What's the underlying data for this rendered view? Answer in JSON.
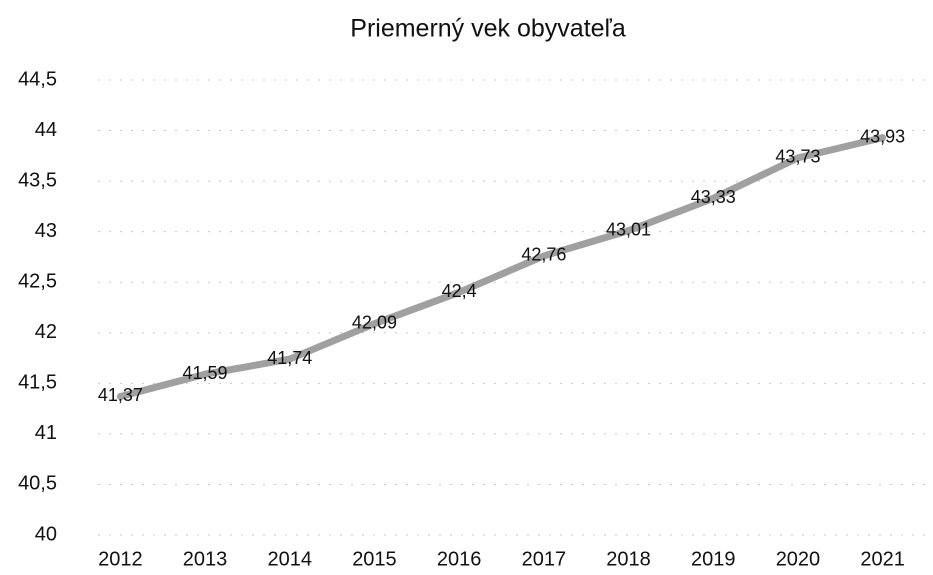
{
  "chart_data": {
    "type": "line",
    "title": "Priemerný vek obyvateľa",
    "categories": [
      "2012",
      "2013",
      "2014",
      "2015",
      "2016",
      "2017",
      "2018",
      "2019",
      "2020",
      "2021"
    ],
    "values": [
      41.37,
      41.59,
      41.74,
      42.09,
      42.4,
      42.76,
      43.01,
      43.33,
      43.73,
      43.93
    ],
    "value_labels": [
      "41,37",
      "41,59",
      "41,74",
      "42,09",
      "42,4",
      "42,76",
      "43,01",
      "43,33",
      "43,73",
      "43,93"
    ],
    "color": "#a0a0a0",
    "ylim": [
      40,
      44.5
    ],
    "yticks": [
      40,
      {
        "value": 40.5,
        "label": "40,5"
      },
      41,
      {
        "value": 41.5,
        "label": "41,5"
      },
      42,
      {
        "value": 42.5,
        "label": "42,5"
      },
      43,
      {
        "value": 43.5,
        "label": "43,5"
      },
      44,
      {
        "value": 44.5,
        "label": "44,5"
      }
    ],
    "grid": true
  }
}
